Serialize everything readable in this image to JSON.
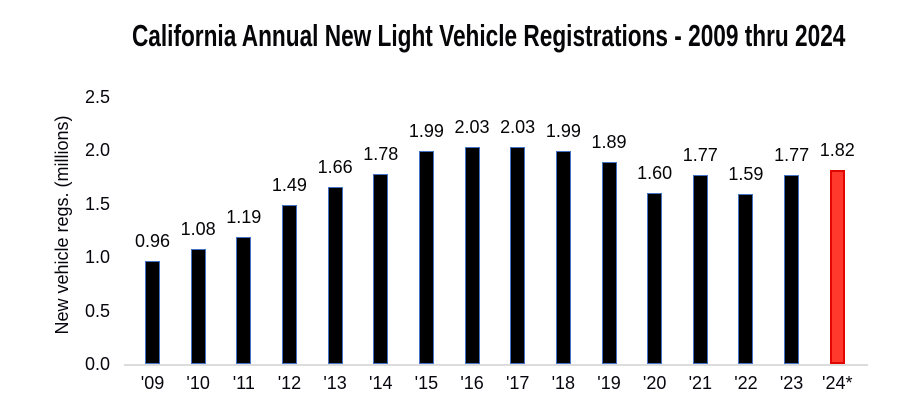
{
  "chart_data": {
    "type": "bar",
    "title": "California Annual New Light Vehicle Registrations - 2009 thru 2024",
    "xlabel": "",
    "ylabel": "New vehicle regs. (millions)",
    "categories": [
      "'09",
      "'10",
      "'11",
      "'12",
      "'13",
      "'14",
      "'15",
      "'16",
      "'17",
      "'18",
      "'19",
      "'20",
      "'21",
      "'22",
      "'23",
      "'24*"
    ],
    "values": [
      0.96,
      1.08,
      1.19,
      1.49,
      1.66,
      1.78,
      1.99,
      2.03,
      2.03,
      1.99,
      1.89,
      1.6,
      1.77,
      1.59,
      1.77,
      1.82
    ],
    "data_labels": [
      "0.96",
      "1.08",
      "1.19",
      "1.49",
      "1.66",
      "1.78",
      "1.99",
      "2.03",
      "2.03",
      "1.99",
      "1.89",
      "1.60",
      "1.77",
      "1.59",
      "1.77",
      "1.82"
    ],
    "ylim": [
      0.0,
      2.5
    ],
    "yticks": [
      0.0,
      0.5,
      1.0,
      1.5,
      2.0,
      2.5
    ],
    "ytick_labels": [
      "0.0",
      "0.5",
      "1.0",
      "1.5",
      "2.0",
      "2.5"
    ],
    "grid": false,
    "legend": "none",
    "bar_color": "#000000",
    "bar_border_color": "#4472c4",
    "highlight_index": 15,
    "highlight_color": "#ff3a2d",
    "highlight_border_color": "#e10600"
  }
}
